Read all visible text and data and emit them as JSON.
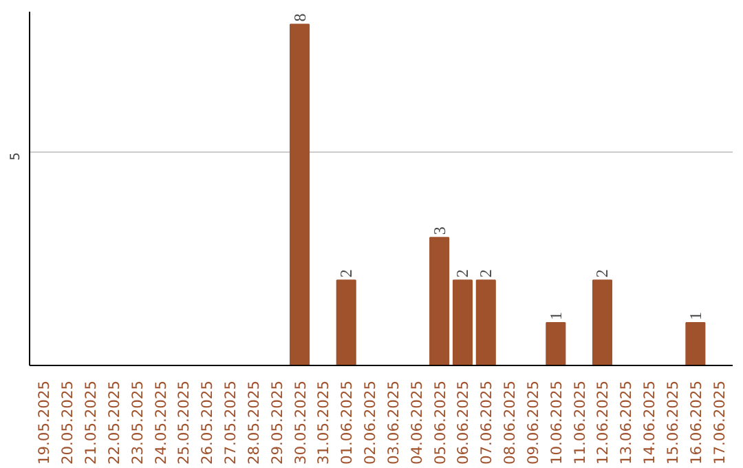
{
  "chart_data": {
    "type": "bar",
    "categories": [
      "19.05.2025",
      "20.05.2025",
      "21.05.2025",
      "22.05.2025",
      "23.05.2025",
      "24.05.2025",
      "25.05.2025",
      "26.05.2025",
      "27.05.2025",
      "28.05.2025",
      "29.05.2025",
      "30.05.2025",
      "31.05.2025",
      "01.06.2025",
      "02.06.2025",
      "03.06.2025",
      "04.06.2025",
      "05.06.2025",
      "06.06.2025",
      "07.06.2025",
      "08.06.2025",
      "09.06.2025",
      "10.06.2025",
      "11.06.2025",
      "12.06.2025",
      "13.06.2025",
      "14.06.2025",
      "15.06.2025",
      "16.06.2025",
      "17.06.2025"
    ],
    "values": [
      0,
      0,
      0,
      0,
      0,
      0,
      0,
      0,
      0,
      0,
      0,
      8,
      0,
      2,
      0,
      0,
      0,
      3,
      2,
      2,
      0,
      0,
      1,
      0,
      2,
      0,
      0,
      0,
      1,
      0
    ],
    "value_labels": [
      null,
      null,
      null,
      null,
      null,
      null,
      null,
      null,
      null,
      null,
      null,
      "8",
      null,
      "2",
      null,
      null,
      null,
      "3",
      "2",
      "2",
      null,
      null,
      "1",
      null,
      "2",
      null,
      null,
      null,
      "1",
      null
    ],
    "color": "#a0522d",
    "ylim": [
      0,
      8.3
    ],
    "yticks": [
      5
    ],
    "grid": "y"
  }
}
